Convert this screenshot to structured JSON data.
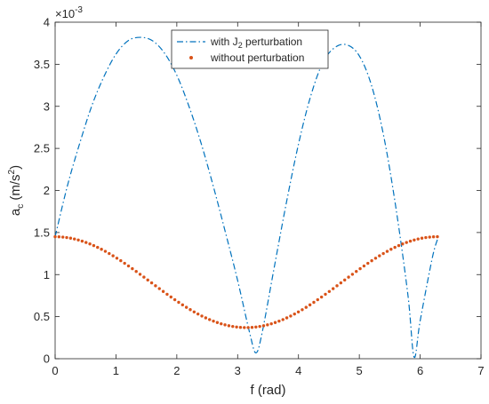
{
  "chart_data": {
    "type": "line",
    "title": "",
    "xlabel": "f (rad)",
    "ylabel": "a_c (m/s^2)",
    "ylabel_parts": {
      "base": "a",
      "sub": "c",
      "unit_open": " (m/s",
      "sup": "2",
      "unit_close": ")"
    },
    "y_exponent_label": {
      "base": "×10",
      "sup": "-3"
    },
    "xlim": [
      0,
      7
    ],
    "ylim": [
      0,
      0.004
    ],
    "x_ticks": [
      0,
      1,
      2,
      3,
      4,
      5,
      6,
      7
    ],
    "x_tick_labels": [
      "0",
      "1",
      "2",
      "3",
      "4",
      "5",
      "6",
      "7"
    ],
    "y_ticks": [
      0,
      0.0005,
      0.001,
      0.0015,
      0.002,
      0.0025,
      0.003,
      0.0035,
      0.004
    ],
    "y_tick_labels": [
      "0",
      "0.5",
      "1",
      "1.5",
      "2",
      "2.5",
      "3",
      "3.5",
      "4"
    ],
    "grid": false,
    "legend_position": "top-center",
    "series": [
      {
        "name": "with J_2 perturbation",
        "name_parts": {
          "pre": "with J",
          "sub": "2",
          "post": " perturbation"
        },
        "style": "dash-dot",
        "color": "#0072BD",
        "x": [
          0,
          0.2,
          0.4,
          0.6,
          0.8,
          1.0,
          1.2,
          1.4,
          1.6,
          1.8,
          2.0,
          2.2,
          2.4,
          2.6,
          2.8,
          3.0,
          3.2,
          3.3,
          3.4,
          3.6,
          3.8,
          4.0,
          4.2,
          4.4,
          4.6,
          4.8,
          5.0,
          5.2,
          5.4,
          5.6,
          5.8,
          5.9,
          6.0,
          6.2,
          6.3
        ],
        "y": [
          0.00145,
          0.00205,
          0.00255,
          0.003,
          0.00335,
          0.00362,
          0.00378,
          0.00382,
          0.00378,
          0.00363,
          0.00337,
          0.003,
          0.00256,
          0.00205,
          0.0015,
          0.00093,
          0.0003,
          7e-05,
          0.0003,
          0.00108,
          0.00185,
          0.00255,
          0.00312,
          0.00352,
          0.0037,
          0.00373,
          0.0036,
          0.00325,
          0.00265,
          0.0018,
          0.00075,
          2e-05,
          0.00045,
          0.0012,
          0.00145
        ]
      },
      {
        "name": "without perturbation",
        "style": "dotted",
        "color": "#D95319",
        "x_range": [
          0,
          6.283
        ],
        "points": 100,
        "y_at_start": 0.00145,
        "y_min": 0.00037,
        "x_at_min": 3.14,
        "y_at_end": 0.00145
      }
    ]
  }
}
